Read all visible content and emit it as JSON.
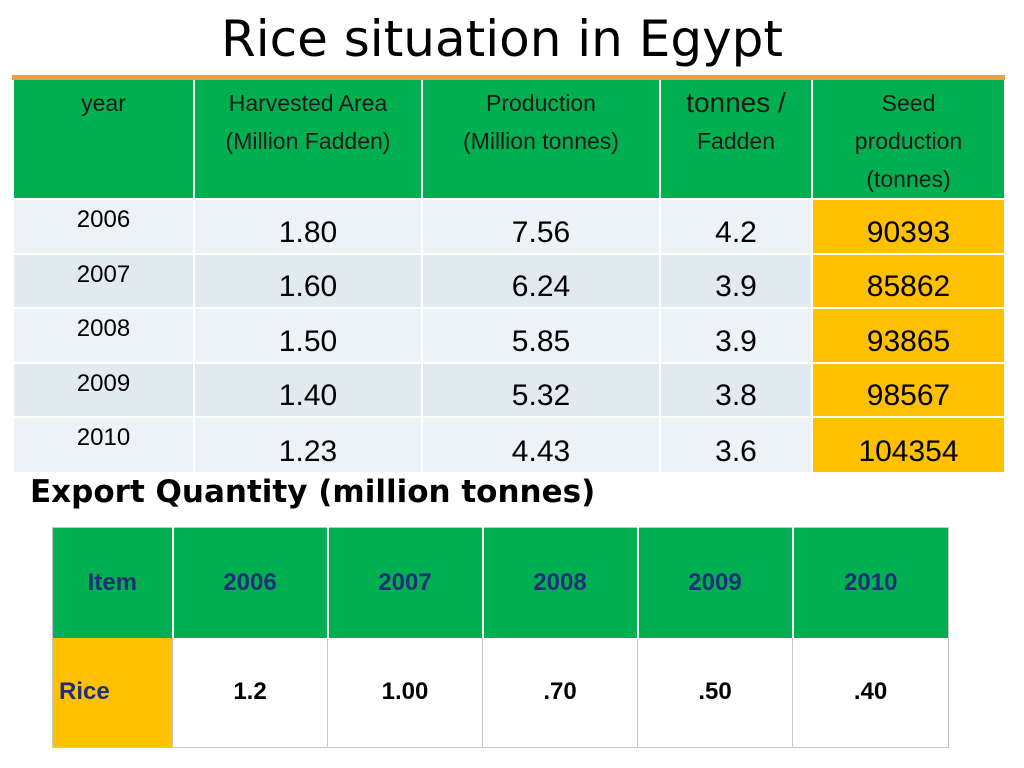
{
  "title": "Rice situation in Egypt",
  "table1": {
    "headers": {
      "year": "year",
      "area": [
        "Harvested Area",
        "(Million Fadden)"
      ],
      "production": [
        "Production",
        "(Million tonnes)"
      ],
      "yield": [
        "tonnes /",
        "Fadden"
      ],
      "seed": [
        "Seed",
        "production",
        "(tonnes)"
      ]
    },
    "rows": [
      {
        "year": "2006",
        "area": "1.80",
        "production": "7.56",
        "yield": "4.2",
        "seed": "90393"
      },
      {
        "year": "2007",
        "area": "1.60",
        "production": "6.24",
        "yield": "3.9",
        "seed": "85862"
      },
      {
        "year": "2008",
        "area": "1.50",
        "production": "5.85",
        "yield": "3.9",
        "seed": "93865"
      },
      {
        "year": "2009",
        "area": "1.40",
        "production": "5.32",
        "yield": "3.8",
        "seed": "98567"
      },
      {
        "year": "2010",
        "area": "1.23",
        "production": "4.43",
        "yield": "3.6",
        "seed": "104354"
      }
    ]
  },
  "export": {
    "title": "Export Quantity (million tonnes)",
    "headers": [
      "Item",
      "2006",
      "2007",
      "2008",
      "2009",
      "2010"
    ],
    "row": {
      "item": "Rice",
      "values": [
        "1.2",
        "1.00",
        ".70",
        ".50",
        ".40"
      ]
    }
  },
  "colors": {
    "header_green": "#00b050",
    "highlight_orange": "#ffc000",
    "rule_orange": "#e8a14a"
  }
}
